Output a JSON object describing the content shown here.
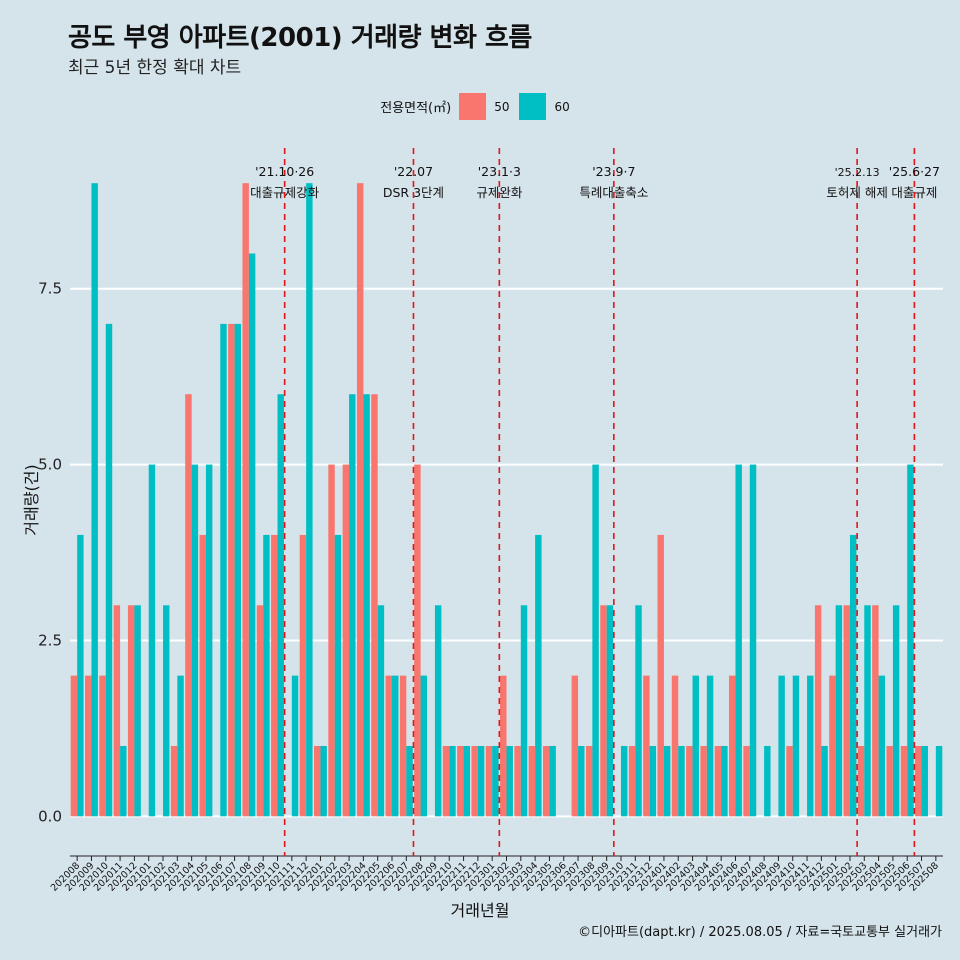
{
  "chart_data": {
    "type": "bar",
    "title": "공도 부영 아파트(2001) 거래량 변화 흐름",
    "subtitle": "최근 5년 한정 확대 차트",
    "xlabel": "거래년월",
    "ylabel": "거래량(건)",
    "legend_title": "전용면적(㎡)",
    "legend_position": "top",
    "caption": "©디아파트(dapt.kr) / 2025.08.05 / 자료=국토교통부 실거래가",
    "ylim": [
      -0.45,
      9.5
    ],
    "yticks": [
      0,
      2.5,
      5,
      7.5
    ],
    "ytick_labels": [
      "0.0",
      "2.5",
      "5.0",
      "7.5"
    ],
    "categories": [
      "202008",
      "202009",
      "202010",
      "202011",
      "202012",
      "202101",
      "202102",
      "202103",
      "202104",
      "202105",
      "202106",
      "202107",
      "202108",
      "202109",
      "202110",
      "202111",
      "202112",
      "202201",
      "202202",
      "202203",
      "202204",
      "202205",
      "202206",
      "202207",
      "202208",
      "202209",
      "202210",
      "202211",
      "202212",
      "202301",
      "202302",
      "202303",
      "202304",
      "202305",
      "202306",
      "202307",
      "202308",
      "202309",
      "202310",
      "202311",
      "202312",
      "202401",
      "202402",
      "202403",
      "202404",
      "202405",
      "202406",
      "202407",
      "202408",
      "202409",
      "202410",
      "202411",
      "202412",
      "202501",
      "202502",
      "202503",
      "202504",
      "202505",
      "202506",
      "202507",
      "202508"
    ],
    "series": [
      {
        "name": "50",
        "color": "#f8766d",
        "values": [
          2,
          2,
          2,
          3,
          3,
          0,
          0,
          1,
          6,
          4,
          0,
          7,
          9,
          3,
          4,
          0,
          4,
          1,
          5,
          5,
          9,
          6,
          2,
          2,
          5,
          0,
          1,
          1,
          1,
          1,
          2,
          1,
          1,
          1,
          0,
          2,
          1,
          3,
          0,
          1,
          2,
          4,
          2,
          1,
          1,
          1,
          2,
          1,
          0,
          0,
          1,
          0,
          3,
          2,
          3,
          1,
          3,
          1,
          1,
          1,
          0
        ]
      },
      {
        "name": "60",
        "color": "#00bfc4",
        "values": [
          4,
          9,
          7,
          1,
          3,
          5,
          3,
          2,
          5,
          5,
          7,
          7,
          8,
          4,
          6,
          2,
          9,
          1,
          4,
          6,
          6,
          3,
          2,
          1,
          2,
          3,
          1,
          1,
          1,
          1,
          1,
          3,
          4,
          1,
          0,
          1,
          5,
          3,
          1,
          3,
          1,
          1,
          1,
          2,
          2,
          1,
          5,
          5,
          1,
          2,
          2,
          2,
          1,
          3,
          4,
          3,
          2,
          3,
          5,
          1,
          1
        ]
      }
    ],
    "annotations": [
      {
        "x_index": 14.5,
        "label_date": "'21.10·26",
        "label_text": "대출규제강화"
      },
      {
        "x_index": 23.5,
        "label_date": "'22.07",
        "label_text": "DSR 3단계"
      },
      {
        "x_index": 29.5,
        "label_date": "'23.1·3",
        "label_text": "규제완화"
      },
      {
        "x_index": 37.5,
        "label_date": "'23.9·7",
        "label_text": "특례대출축소"
      },
      {
        "x_index": 54.5,
        "label_date": "'25.2.13",
        "label_text": "토허제 해제"
      },
      {
        "x_index": 58.5,
        "label_date": "'25.6·27",
        "label_text": "대출규제"
      }
    ]
  }
}
